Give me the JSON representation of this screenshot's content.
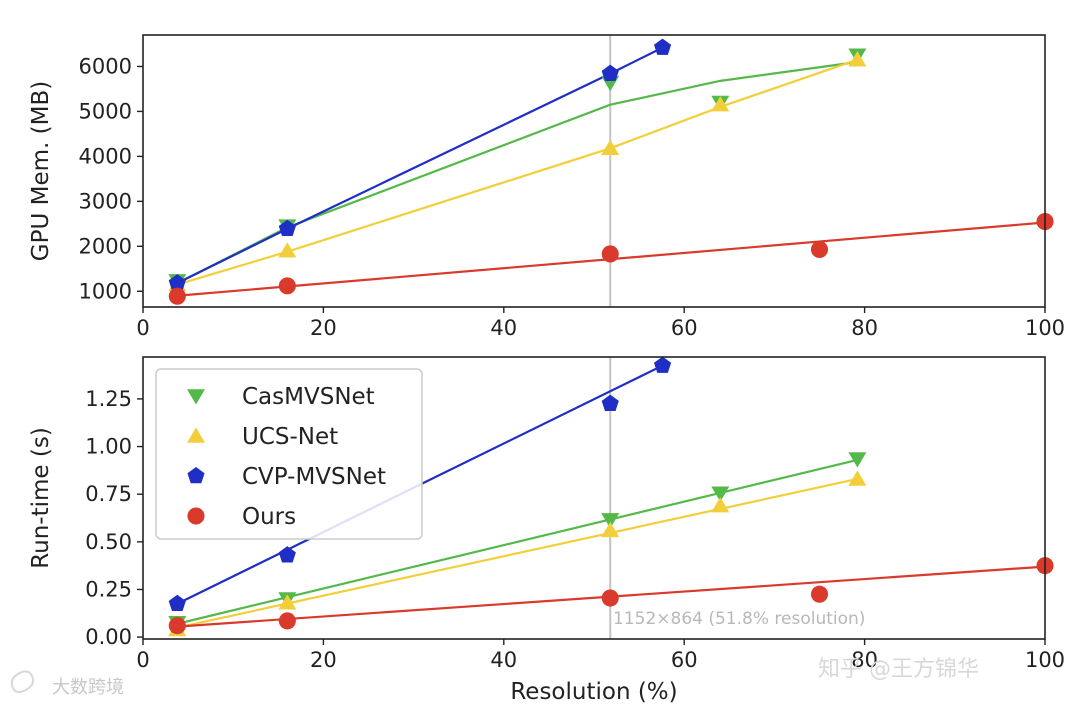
{
  "chart_data": [
    {
      "type": "line",
      "ylabel": "GPU Mem. (MB)",
      "xlim": [
        0,
        100
      ],
      "ylim": [
        650,
        6700
      ],
      "xticks": [
        0,
        20,
        40,
        60,
        80,
        100
      ],
      "yticks": [
        1000,
        2000,
        3000,
        4000,
        5000,
        6000
      ],
      "series": [
        {
          "name": "CasMVSNet",
          "color": "#55b94a",
          "marker": "triangle-down",
          "x": [
            3.8,
            16,
            51.8,
            64,
            79.2
          ],
          "y": [
            1230,
            2450,
            5640,
            5200,
            6250
          ],
          "fit_x": [
            3.8,
            16,
            51.8,
            64,
            79.2
          ],
          "fit_y": [
            1180,
            2420,
            5150,
            5680,
            6100
          ]
        },
        {
          "name": "UCS-Net",
          "color": "#f2cf3a",
          "marker": "triangle-up",
          "x": [
            3.8,
            16,
            51.8,
            64,
            79.2
          ],
          "y": [
            1150,
            1900,
            4180,
            5150,
            6150
          ],
          "fit_x": [
            3.8,
            16,
            51.8,
            64,
            79.2
          ],
          "fit_y": [
            1150,
            1880,
            4180,
            5100,
            6150
          ]
        },
        {
          "name": "CVP-MVSNet",
          "color": "#1f2ec4",
          "marker": "pentagon",
          "x": [
            3.8,
            16,
            51.8,
            57.6
          ],
          "y": [
            1180,
            2390,
            5840,
            6420
          ],
          "fit_x": [
            3.8,
            16,
            51.8,
            57.6
          ],
          "fit_y": [
            1180,
            2390,
            5840,
            6420
          ]
        },
        {
          "name": "Ours",
          "color": "#d93a2b",
          "marker": "circle",
          "x": [
            3.8,
            16,
            51.8,
            75,
            100
          ],
          "y": [
            890,
            1120,
            1830,
            1930,
            2550
          ],
          "fit_x": [
            3.8,
            100
          ],
          "fit_y": [
            900,
            2530
          ]
        }
      ],
      "vline_x": 51.8
    },
    {
      "type": "line",
      "xlabel": "Resolution (%)",
      "ylabel": "Run-time (s)",
      "xlim": [
        0,
        100
      ],
      "ylim": [
        -0.01,
        1.47
      ],
      "xticks": [
        0,
        20,
        40,
        60,
        80,
        100
      ],
      "yticks": [
        "0.00",
        "0.25",
        "0.50",
        "0.75",
        "1.00",
        "1.25"
      ],
      "legend": {
        "position": "upper-left",
        "entries": [
          "CasMVSNet",
          "UCS-Net",
          "CVP-MVSNet",
          "Ours"
        ]
      },
      "series": [
        {
          "name": "CasMVSNet",
          "color": "#55b94a",
          "marker": "triangle-down",
          "x": [
            3.8,
            16,
            51.8,
            64,
            79.2
          ],
          "y": [
            0.075,
            0.2,
            0.615,
            0.755,
            0.935
          ],
          "fit_x": [
            3.8,
            79.2
          ],
          "fit_y": [
            0.07,
            0.93
          ]
        },
        {
          "name": "UCS-Net",
          "color": "#f2cf3a",
          "marker": "triangle-up",
          "x": [
            3.8,
            16,
            51.8,
            64,
            79.2
          ],
          "y": [
            0.04,
            0.18,
            0.56,
            0.69,
            0.83
          ],
          "fit_x": [
            3.8,
            79.2
          ],
          "fit_y": [
            0.05,
            0.83
          ]
        },
        {
          "name": "CVP-MVSNet",
          "color": "#1f2ec4",
          "marker": "pentagon",
          "x": [
            3.8,
            16,
            51.8,
            57.6
          ],
          "y": [
            0.175,
            0.43,
            1.225,
            1.425
          ],
          "fit_x": [
            3.8,
            57.6
          ],
          "fit_y": [
            0.175,
            1.425
          ]
        },
        {
          "name": "Ours",
          "color": "#d93a2b",
          "marker": "circle",
          "x": [
            3.8,
            16,
            51.8,
            75,
            100
          ],
          "y": [
            0.06,
            0.085,
            0.205,
            0.225,
            0.375
          ],
          "fit_x": [
            3.8,
            100
          ],
          "fit_y": [
            0.055,
            0.37
          ]
        }
      ],
      "vline_x": 51.8,
      "annotation": "1152×864 (51.8% resolution)"
    }
  ],
  "watermarks": {
    "left": "大数跨境",
    "right": "知乎 @王方锦华"
  }
}
